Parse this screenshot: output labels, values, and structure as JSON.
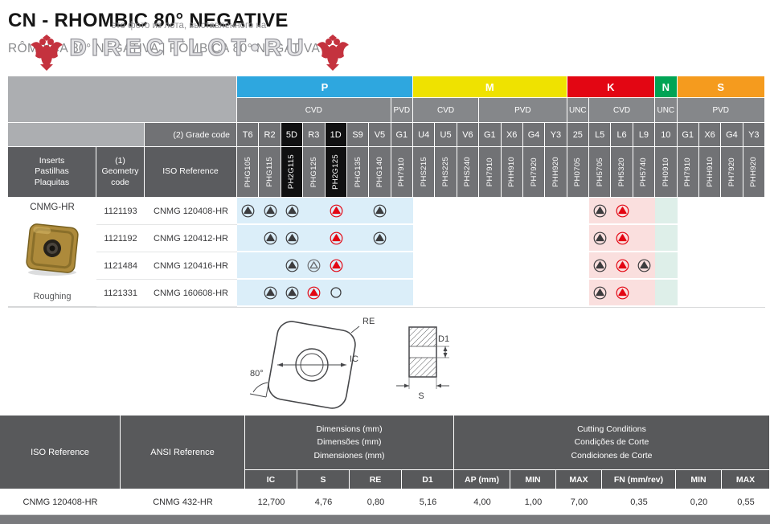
{
  "page": {
    "title": "CN - RHOMBIC 80° NEGATIVE",
    "subtitle": "RÔMBICA 80° NEGATIVA | RÓMBICA 80° NEGATIVA"
  },
  "watermark": {
    "line1": "это фото из лота, выставленного на",
    "line2": "DIRECTLOT•RU"
  },
  "grade_table": {
    "left": {
      "grade_code_label": "(2) Grade code",
      "inserts_label": [
        "Inserts",
        "Pastilhas",
        "Plaquitas"
      ],
      "geometry_label": [
        "(1)",
        "Geometry",
        "code"
      ],
      "iso_label": "ISO Reference"
    },
    "groups": [
      {
        "label": "P",
        "color": "#2EA7DF",
        "span": 8
      },
      {
        "label": "M",
        "color": "#EFE200",
        "span": 7
      },
      {
        "label": "K",
        "color": "#E30613",
        "span": 4
      },
      {
        "label": "N",
        "color": "#00A455",
        "span": 1
      },
      {
        "label": "S",
        "color": "#F59B1E",
        "span": 4
      }
    ],
    "coatings": [
      {
        "label": "CVD",
        "span": 7
      },
      {
        "label": "PVD",
        "span": 1
      },
      {
        "label": "CVD",
        "span": 3
      },
      {
        "label": "PVD",
        "span": 4
      },
      {
        "label": "UNC",
        "span": 1
      },
      {
        "label": "CVD",
        "span": 3
      },
      {
        "label": "UNC",
        "span": 1
      },
      {
        "label": "PVD",
        "span": 4
      }
    ],
    "columns": [
      {
        "grade": "T6",
        "iso": "PHG105",
        "dark": false,
        "tint": "#DBEEF9"
      },
      {
        "grade": "R2",
        "iso": "PHG115",
        "dark": false,
        "tint": "#DBEEF9"
      },
      {
        "grade": "5D",
        "iso": "PH2G115",
        "dark": true,
        "tint": "#DBEEF9"
      },
      {
        "grade": "R3",
        "iso": "PHG125",
        "dark": false,
        "tint": "#DBEEF9"
      },
      {
        "grade": "1D",
        "iso": "PH2G125",
        "dark": true,
        "tint": "#DBEEF9"
      },
      {
        "grade": "S9",
        "iso": "PHG135",
        "dark": false,
        "tint": "#DBEEF9"
      },
      {
        "grade": "V5",
        "iso": "PHG140",
        "dark": false,
        "tint": "#DBEEF9"
      },
      {
        "grade": "G1",
        "iso": "PH7910",
        "dark": false,
        "tint": "#DBEEF9"
      },
      {
        "grade": "U4",
        "iso": "PHS215",
        "dark": false,
        "tint": ""
      },
      {
        "grade": "U5",
        "iso": "PHS225",
        "dark": false,
        "tint": ""
      },
      {
        "grade": "V6",
        "iso": "PHS240",
        "dark": false,
        "tint": ""
      },
      {
        "grade": "G1",
        "iso": "PH7910",
        "dark": false,
        "tint": ""
      },
      {
        "grade": "X6",
        "iso": "PHH910",
        "dark": false,
        "tint": ""
      },
      {
        "grade": "G4",
        "iso": "PH7920",
        "dark": false,
        "tint": ""
      },
      {
        "grade": "Y3",
        "iso": "PHH920",
        "dark": false,
        "tint": ""
      },
      {
        "grade": "25",
        "iso": "PH0705",
        "dark": false,
        "tint": ""
      },
      {
        "grade": "L5",
        "iso": "PH5705",
        "dark": false,
        "tint": "#FADFDE"
      },
      {
        "grade": "L6",
        "iso": "PH5320",
        "dark": false,
        "tint": "#FADFDE"
      },
      {
        "grade": "L9",
        "iso": "PH5740",
        "dark": false,
        "tint": "#FADFDE"
      },
      {
        "grade": "10",
        "iso": "PH0910",
        "dark": false,
        "tint": "#DEEFE9"
      },
      {
        "grade": "G1",
        "iso": "PH7910",
        "dark": false,
        "tint": ""
      },
      {
        "grade": "X6",
        "iso": "PHH910",
        "dark": false,
        "tint": ""
      },
      {
        "grade": "G4",
        "iso": "PH7920",
        "dark": false,
        "tint": ""
      },
      {
        "grade": "Y3",
        "iso": "PHH920",
        "dark": false,
        "tint": ""
      }
    ],
    "insert": {
      "name": "CNMG-HR",
      "machining": "Roughing"
    },
    "rows": [
      {
        "geometry_code": "1121193",
        "iso_reference": "CNMG 120408-HR",
        "markers": [
          "t-dark",
          "t-dark",
          "t-dark",
          "",
          "t-red",
          "",
          "t-dark",
          "",
          "",
          "",
          "",
          "",
          "",
          "",
          "",
          "",
          "t-dark",
          "t-red",
          "",
          "",
          "",
          "",
          "",
          ""
        ]
      },
      {
        "geometry_code": "1121192",
        "iso_reference": "CNMG 120412-HR",
        "markers": [
          "",
          "t-dark",
          "t-dark",
          "",
          "t-red",
          "",
          "t-dark",
          "",
          "",
          "",
          "",
          "",
          "",
          "",
          "",
          "",
          "t-dark",
          "t-red",
          "",
          "",
          "",
          "",
          "",
          ""
        ]
      },
      {
        "geometry_code": "1121484",
        "iso_reference": "CNMG 120416-HR",
        "markers": [
          "",
          "",
          "t-dark",
          "t-outline",
          "t-red",
          "",
          "",
          "",
          "",
          "",
          "",
          "",
          "",
          "",
          "",
          "",
          "t-dark",
          "t-red",
          "t-dark",
          "",
          "",
          "",
          "",
          ""
        ]
      },
      {
        "geometry_code": "1121331",
        "iso_reference": "CNMG 160608-HR",
        "markers": [
          "",
          "t-dark",
          "t-dark",
          "t-red",
          "circle",
          "",
          "",
          "",
          "",
          "",
          "",
          "",
          "",
          "",
          "",
          "",
          "t-dark",
          "t-red",
          "",
          "",
          "",
          "",
          "",
          ""
        ]
      }
    ]
  },
  "drawing": {
    "labels": {
      "re": "RE",
      "ic": "IC",
      "angle": "80°",
      "d1": "D1",
      "s": "S"
    }
  },
  "spec_table": {
    "iso_header": "ISO Reference",
    "ansi_header": "ANSI Reference",
    "dimensions_header": [
      "Dimensions (mm)",
      "Dimensões (mm)",
      "Dimensiones (mm)"
    ],
    "cutting_header": [
      "Cutting Conditions",
      "Condições de Corte",
      "Condiciones de Corte"
    ],
    "sub_headers": [
      "IC",
      "S",
      "RE",
      "D1",
      "AP (mm)",
      "MIN",
      "MAX",
      "FN (mm/rev)",
      "MIN",
      "MAX"
    ],
    "rows": [
      {
        "iso": "CNMG 120408-HR",
        "ansi": "CNMG 432-HR",
        "values": [
          "12,700",
          "4,76",
          "0,80",
          "5,16",
          "4,00",
          "1,00",
          "7,00",
          "0,35",
          "0,20",
          "0,55"
        ]
      }
    ]
  }
}
